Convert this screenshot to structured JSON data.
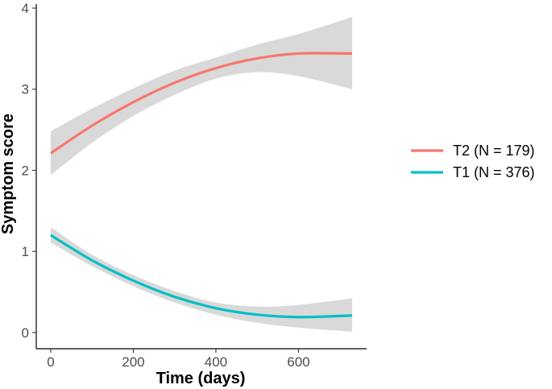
{
  "chart_data": {
    "type": "line",
    "title": "",
    "xlabel": "Time (days)",
    "ylabel": "Symptom score",
    "xlim": [
      -35,
      765
    ],
    "ylim": [
      -0.2,
      4.05
    ],
    "x_ticks": [
      0,
      200,
      400,
      600
    ],
    "y_ticks": [
      0,
      1,
      2,
      3,
      4
    ],
    "grid": false,
    "legend_position": "right",
    "series": [
      {
        "name": "T2 (N = 179)",
        "color": "#F8766D",
        "x": [
          0,
          100,
          200,
          300,
          400,
          500,
          600,
          730
        ],
        "y": [
          2.21,
          2.55,
          2.84,
          3.08,
          3.26,
          3.38,
          3.44,
          3.44
        ],
        "ci_lower": [
          1.94,
          2.34,
          2.67,
          2.93,
          3.13,
          3.21,
          3.16,
          3.0
        ],
        "ci_upper": [
          2.48,
          2.76,
          3.01,
          3.23,
          3.39,
          3.55,
          3.68,
          3.89
        ]
      },
      {
        "name": "T1 (N = 376)",
        "color": "#00BFC4",
        "x": [
          0,
          100,
          200,
          300,
          400,
          500,
          600,
          730
        ],
        "y": [
          1.2,
          0.89,
          0.64,
          0.44,
          0.3,
          0.22,
          0.19,
          0.21
        ],
        "ci_lower": [
          1.11,
          0.82,
          0.57,
          0.37,
          0.22,
          0.12,
          0.06,
          0.01
        ],
        "ci_upper": [
          1.3,
          0.96,
          0.71,
          0.51,
          0.37,
          0.32,
          0.34,
          0.42
        ]
      }
    ]
  }
}
